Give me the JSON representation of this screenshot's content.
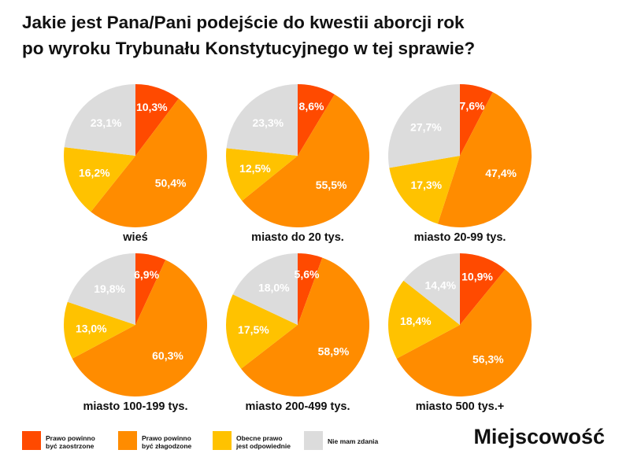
{
  "title_lines": [
    "Jakie jest Pana/Pani podejście do kwestii aborcji rok",
    "po wyroku Trybunału Konstytucyjnego w tej sprawie?"
  ],
  "brand": "Miejscowość",
  "colors": {
    "zaostrzone": "#ff4a00",
    "zlagodzone": "#ff8c00",
    "odpowiednie": "#ffc200",
    "brak_zdania": "#dcdcdc"
  },
  "legend": [
    {
      "key": "zaostrzone",
      "lines": [
        "Prawo powinno",
        "być zaostrzone"
      ]
    },
    {
      "key": "zlagodzone",
      "lines": [
        "Prawo powinno",
        "być złagodzone"
      ]
    },
    {
      "key": "odpowiednie",
      "lines": [
        "Obecne prawo",
        "jest odpowiednie"
      ]
    },
    {
      "key": "brak_zdania",
      "lines": [
        "Nie mam zdania"
      ]
    }
  ],
  "chart_data": {
    "type": "pie",
    "series_order": [
      "zaostrzone",
      "zlagodzone",
      "odpowiednie",
      "brak_zdania"
    ],
    "series_names": [
      "Prawo powinno być zaostrzone",
      "Prawo powinno być złagodzone",
      "Obecne prawo jest odpowiednie",
      "Nie mam zdania"
    ],
    "unit": "%",
    "pies": [
      {
        "category": "wieś",
        "values": [
          10.3,
          50.4,
          16.2,
          23.1
        ],
        "labels": [
          "10,3%",
          "50,4%",
          "16,2%",
          "23,1%"
        ]
      },
      {
        "category": "miasto do 20 tys.",
        "values": [
          8.6,
          55.5,
          12.5,
          23.3
        ],
        "labels": [
          "8,6%",
          "55,5%",
          "12,5%",
          "23,3%"
        ]
      },
      {
        "category": "miasto 20-99 tys.",
        "values": [
          7.6,
          47.4,
          17.3,
          27.7
        ],
        "labels": [
          "7,6%",
          "47,4%",
          "17,3%",
          "27,7%"
        ]
      },
      {
        "category": "miasto 100-199 tys.",
        "values": [
          6.9,
          60.3,
          13.0,
          19.8
        ],
        "labels": [
          "6,9%",
          "60,3%",
          "13,0%",
          "19,8%"
        ]
      },
      {
        "category": "miasto 200-499 tys.",
        "values": [
          5.6,
          58.9,
          17.5,
          18.0
        ],
        "labels": [
          "5,6%",
          "58,9%",
          "17,5%",
          "18,0%"
        ]
      },
      {
        "category": "miasto 500 tys.+",
        "values": [
          10.9,
          56.3,
          18.4,
          14.4
        ],
        "labels": [
          "10,9%",
          "56,3%",
          "18,4%",
          "14,4%"
        ]
      }
    ]
  }
}
